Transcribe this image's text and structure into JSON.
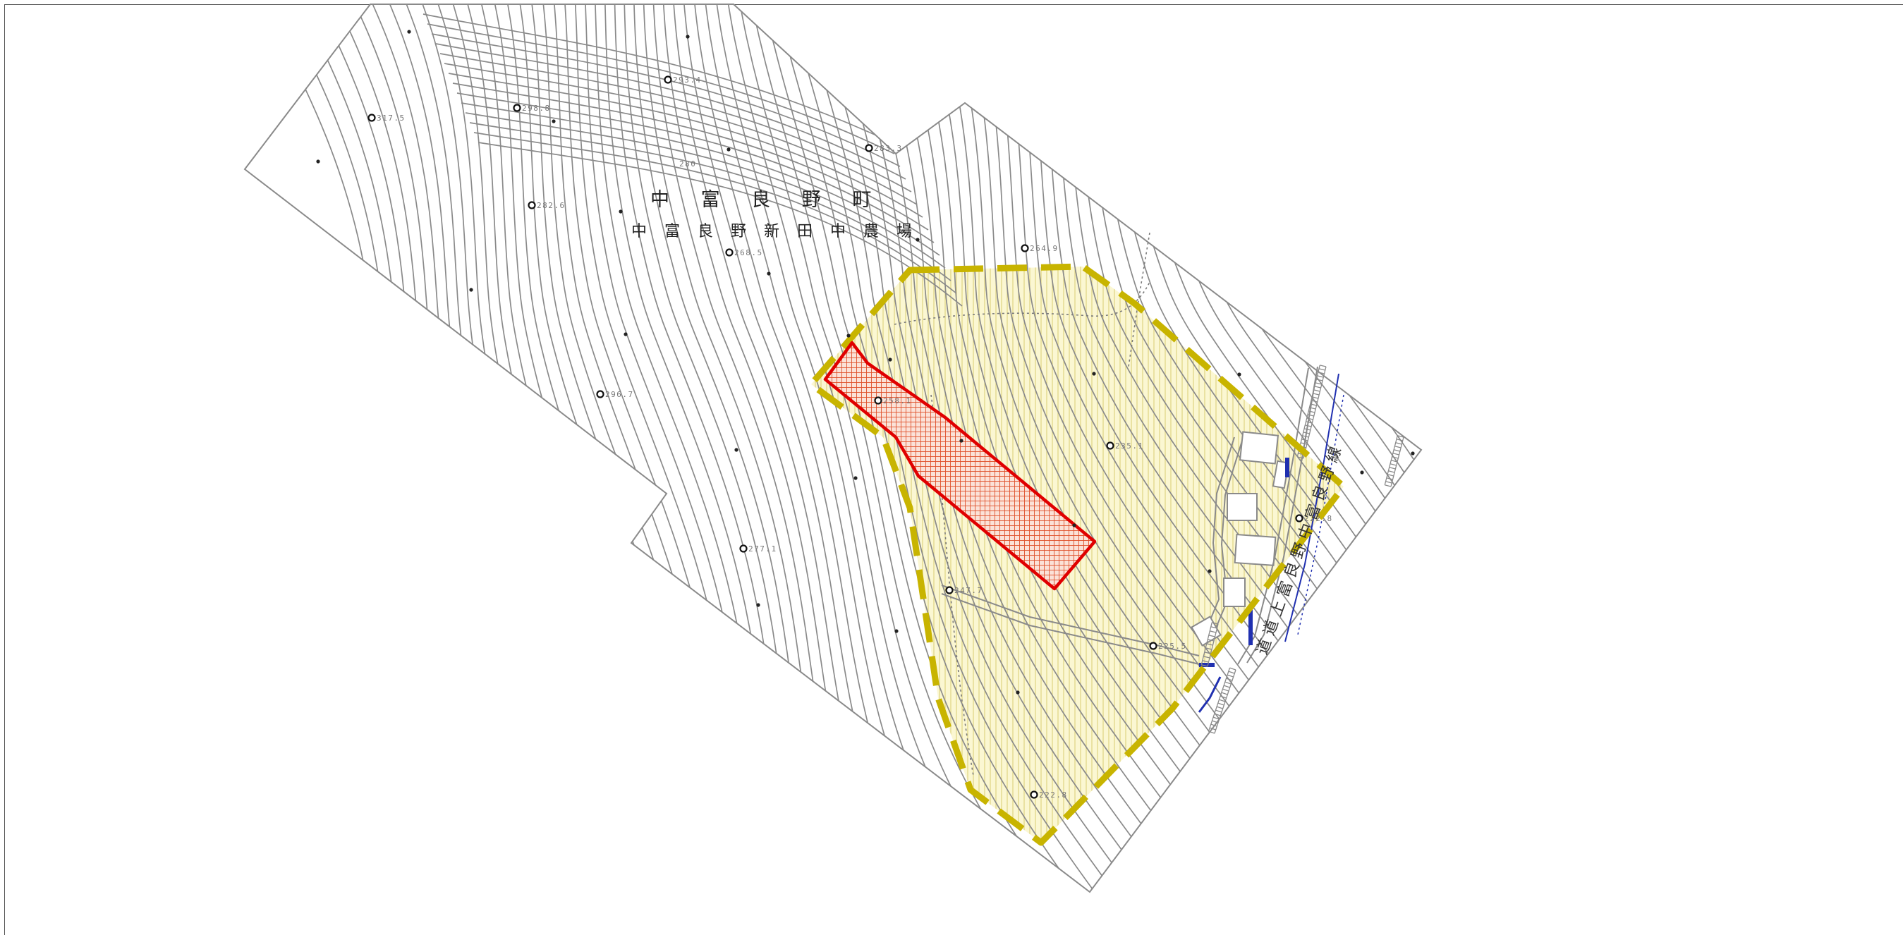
{
  "map": {
    "town_name": "中 富 良 野 町",
    "area_name": "中 富 良 野 新 田 中 農 場",
    "road_labels": [
      "道 道 上 富 良 野 中 富 良 野 線"
    ],
    "contour_label": "280",
    "spot_heights": [
      {
        "label": "317.5"
      },
      {
        "label": "298.8"
      },
      {
        "label": "293.4"
      },
      {
        "label": "283.3"
      },
      {
        "label": "282.6"
      },
      {
        "label": "268.5"
      },
      {
        "label": "264.9"
      },
      {
        "label": "296.7"
      },
      {
        "label": "258.1"
      },
      {
        "label": "235.1"
      },
      {
        "label": "277.1"
      },
      {
        "label": "222.8"
      },
      {
        "label": "247.7"
      },
      {
        "label": "225.5"
      },
      {
        "label": "222.8"
      }
    ],
    "legend_colors": {
      "contour": "#8a8a8a",
      "outer_zone_stroke": "#c8b400",
      "outer_zone_fill": "#fbf7d2",
      "inner_zone_stroke": "#e00000",
      "inner_zone_hatch": "#e0502a",
      "road_blue": "#2030b0"
    }
  }
}
